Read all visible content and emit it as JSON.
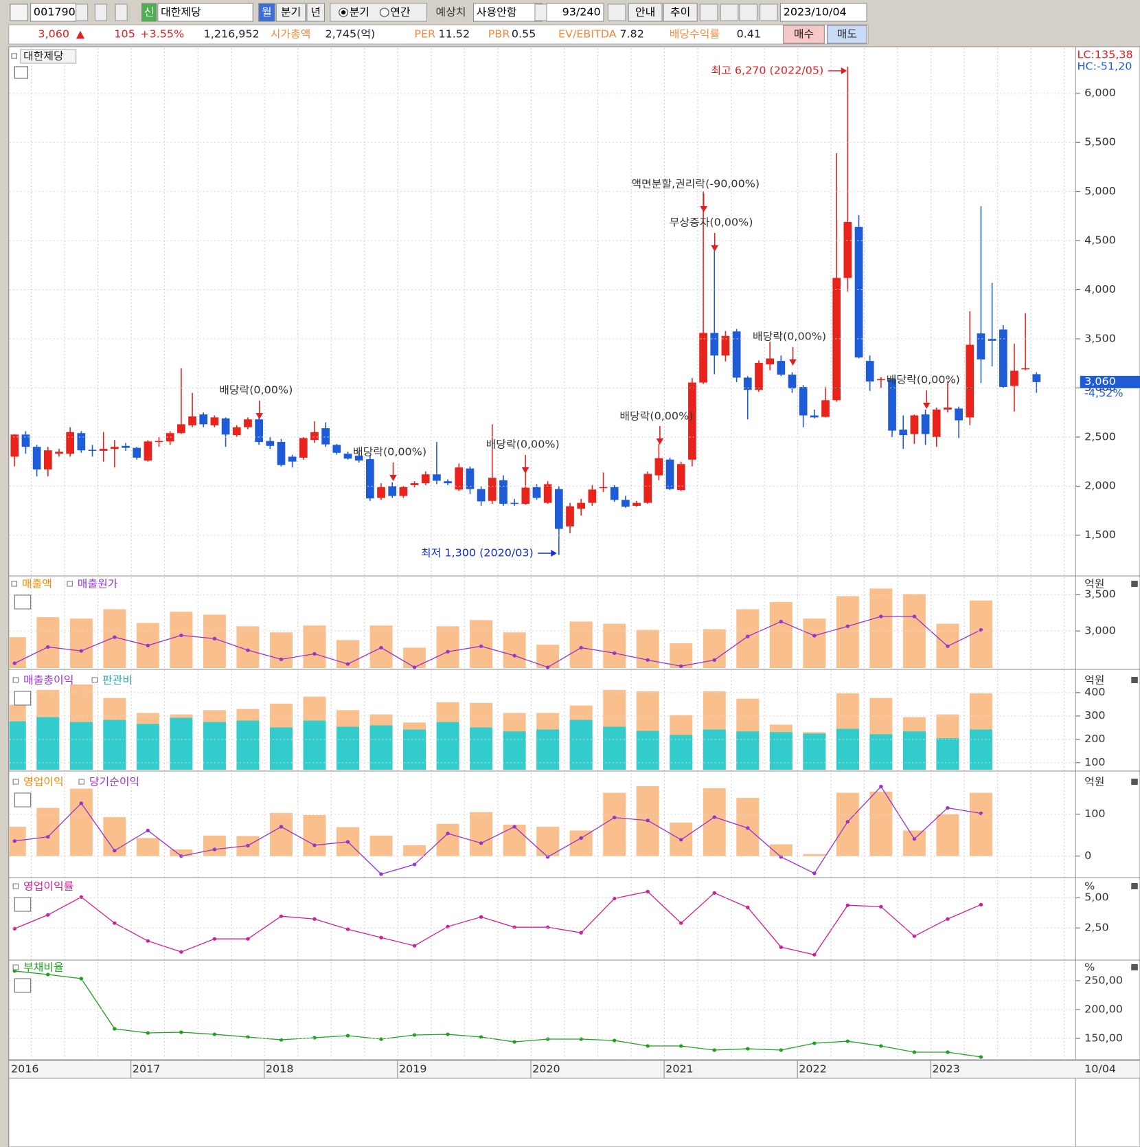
{
  "toolbar": {
    "code": "001790",
    "badge": "신",
    "name": "대한제당",
    "period_month": "월",
    "period_quarter": "분기",
    "period_year": "년",
    "radio_quarter": "분기",
    "radio_annual": "연간",
    "estimate_label": "예상치",
    "estimate_value": "사용안함",
    "count": "93/240",
    "guide": "안내",
    "trend": "추이",
    "date": "2023/10/04"
  },
  "info": {
    "price": "3,060",
    "arrow": "▲",
    "change": "105",
    "change_pct": "+3.55%",
    "volume": "1,216,952",
    "market_cap_label": "시가총액",
    "market_cap": "2,745(억)",
    "per_label": "PER",
    "per": "11.52",
    "pbr_label": "PBR",
    "pbr": "0.55",
    "ev_ebitda_label": "EV/EBITDA",
    "ev_ebitda": "7.82",
    "dividend_yield_label": "배당수익률",
    "dividend_yield": "0.41",
    "buy": "매수",
    "sell": "매도"
  },
  "x_labels": [
    "2016",
    "2017",
    "2018",
    "2019",
    "2020",
    "2021",
    "2022",
    "2023",
    "10/04"
  ],
  "chart_data": [
    {
      "type": "candlestick",
      "title": "대한제당",
      "up_color": "#e8231c",
      "down_color": "#1e5bd6",
      "open": [
        2300,
        2525,
        2400,
        2170,
        2330,
        2330,
        2540,
        2370,
        2360,
        2380,
        2410,
        2390,
        2260,
        2455,
        2455,
        2540,
        2620,
        2730,
        2620,
        2690,
        2520,
        2600,
        2680,
        2460,
        2450,
        2300,
        2290,
        2470,
        2590,
        2420,
        2330,
        2310,
        2275,
        1880,
        2000,
        1900,
        2010,
        2030,
        2120,
        2050,
        1965,
        2180,
        1970,
        1850,
        2060,
        1830,
        1820,
        1990,
        1830,
        1970,
        1590,
        1770,
        1830,
        1980,
        1990,
        1860,
        1800,
        1830,
        2110,
        2270,
        1960,
        2270,
        3055,
        3560,
        3330,
        3575,
        3105,
        2980,
        3240,
        3275,
        3135,
        3010,
        2720,
        2705,
        2875,
        4120,
        4640,
        3275,
        3080,
        3090,
        2575,
        2530,
        2730,
        2500,
        2780,
        2790,
        2700,
        3555,
        3500,
        3595,
        3020,
        3190,
        3140
      ],
      "high": [
        2530,
        2560,
        2420,
        2400,
        2380,
        2600,
        2560,
        2420,
        2550,
        2470,
        2440,
        2400,
        2470,
        2500,
        2560,
        3200,
        2950,
        2750,
        2720,
        2700,
        2620,
        2700,
        2720,
        2500,
        2480,
        2320,
        2500,
        2660,
        2650,
        2430,
        2350,
        2360,
        2310,
        2030,
        2040,
        2000,
        2050,
        2150,
        2450,
        2070,
        2230,
        2200,
        2000,
        2630,
        2110,
        1870,
        2150,
        2020,
        2050,
        2000,
        1830,
        1870,
        2010,
        2140,
        2010,
        1900,
        1850,
        2150,
        2430,
        2290,
        2250,
        3100,
        5000,
        4450,
        3580,
        3600,
        3120,
        3280,
        3470,
        3330,
        3160,
        3030,
        2780,
        3010,
        5390,
        6270,
        4760,
        3330,
        3110,
        3100,
        2720,
        2730,
        2780,
        2800,
        3070,
        2810,
        3780,
        4850,
        4070,
        3640,
        3450,
        3760,
        3160
      ],
      "low": [
        2200,
        2330,
        2100,
        2100,
        2300,
        2300,
        2340,
        2300,
        2250,
        2190,
        2360,
        2270,
        2250,
        2400,
        2420,
        2530,
        2600,
        2600,
        2600,
        2400,
        2500,
        2580,
        2420,
        2380,
        2200,
        2190,
        2270,
        2440,
        2400,
        2320,
        2270,
        2240,
        1850,
        1860,
        1880,
        1880,
        1990,
        2010,
        2020,
        2010,
        1950,
        1920,
        1800,
        1820,
        1800,
        1800,
        1810,
        1860,
        1820,
        1300,
        1520,
        1700,
        1800,
        1940,
        1840,
        1780,
        1790,
        1820,
        2060,
        1960,
        1950,
        2200,
        3040,
        3140,
        3270,
        3060,
        2680,
        2960,
        3180,
        3120,
        2950,
        2600,
        2690,
        2700,
        2860,
        3980,
        3300,
        2970,
        3000,
        2500,
        2380,
        2430,
        2420,
        2400,
        2750,
        2490,
        2620,
        3050,
        3220,
        3000,
        2760,
        3180,
        2950
      ],
      "close": [
        2525,
        2400,
        2170,
        2365,
        2350,
        2550,
        2365,
        2360,
        2380,
        2400,
        2390,
        2290,
        2455,
        2460,
        2540,
        2630,
        2710,
        2630,
        2700,
        2525,
        2600,
        2680,
        2450,
        2410,
        2215,
        2250,
        2490,
        2550,
        2425,
        2340,
        2280,
        2260,
        1875,
        1990,
        1900,
        1990,
        2030,
        2120,
        2055,
        2030,
        2190,
        1970,
        1845,
        2085,
        1820,
        1820,
        1985,
        1880,
        2020,
        1565,
        1795,
        1830,
        1965,
        1990,
        1860,
        1790,
        1830,
        2125,
        2285,
        1970,
        2225,
        3055,
        3560,
        3330,
        3530,
        3105,
        2980,
        3255,
        3300,
        3135,
        2995,
        2720,
        2700,
        2875,
        4120,
        4690,
        3310,
        3065,
        3090,
        2565,
        2520,
        2720,
        2530,
        2780,
        2800,
        2670,
        3440,
        3290,
        3480,
        3010,
        3175,
        3200,
        3060
      ],
      "ylim": [
        1100,
        6460
      ],
      "yticks": [
        {
          "value": 1500,
          "label": "1,500"
        },
        {
          "value": 2000,
          "label": "2,000"
        },
        {
          "value": 2500,
          "label": "2,500"
        },
        {
          "value": 3000,
          "label": "3,000"
        },
        {
          "value": 3500,
          "label": "3,500"
        },
        {
          "value": 4000,
          "label": "4,000"
        },
        {
          "value": 4500,
          "label": "4,500"
        },
        {
          "value": 5000,
          "label": "5,000"
        },
        {
          "value": 5500,
          "label": "5,500"
        },
        {
          "value": 6000,
          "label": "6,000"
        }
      ],
      "lc": "LC:135,38",
      "hc": "HC:-51,20",
      "price_tag": "3,060",
      "change_tag": "-4,52%",
      "annotations": [
        {
          "text": "최고 6,270 (2022/05)"
        },
        {
          "text": "최저 1,300 (2020/03)"
        },
        {
          "text": "액면분할,권리락(-90,00%)"
        },
        {
          "text": "무상증자(0,00%)"
        },
        {
          "text": "배당락(0,00%)"
        },
        {
          "text": "배당락(0,00%)"
        },
        {
          "text": "배당락(0,00%)"
        },
        {
          "text": "배당락(0,00%)"
        },
        {
          "text": "배당락(0,00%)"
        },
        {
          "text": "배당락(0,00%)"
        }
      ]
    },
    {
      "type": "bar",
      "unit": "억원",
      "ylim": [
        2490,
        3740
      ],
      "yticks": [
        {
          "value": 3000,
          "label": "3,000"
        },
        {
          "value": 3500,
          "label": "3,500"
        }
      ],
      "series": [
        {
          "name": "매출액",
          "type": "bar",
          "color": "#f9c08e",
          "label_color": "#f08a00",
          "values": [
            2915,
            3190,
            3170,
            3300,
            3110,
            3265,
            3225,
            3065,
            2980,
            3075,
            2875,
            3075,
            2770,
            3065,
            3150,
            2980,
            2810,
            3130,
            3100,
            3015,
            2830,
            3025,
            3300,
            3400,
            3170,
            3480,
            3585,
            3510,
            3100,
            3420
          ]
        },
        {
          "name": "매출원가",
          "type": "line",
          "color": "#9933cc",
          "label_color": "#9933cc",
          "values": [
            2555,
            2780,
            2725,
            2915,
            2800,
            2940,
            2895,
            2735,
            2610,
            2685,
            2545,
            2770,
            2500,
            2715,
            2790,
            2660,
            2500,
            2770,
            2695,
            2600,
            2515,
            2600,
            2925,
            3130,
            2935,
            3065,
            3200,
            3200,
            2790,
            3015
          ]
        }
      ]
    },
    {
      "type": "bar",
      "unit": "억원",
      "ylim": [
        70,
        482
      ],
      "yticks": [
        100,
        200,
        300,
        400
      ],
      "series": [
        {
          "name": "매출총이익",
          "type": "bar",
          "color": "#f9c08e",
          "label_color": "#9933cc",
          "values": [
            348,
            412,
            435,
            377,
            313,
            307,
            325,
            330,
            353,
            383,
            325,
            307,
            272,
            359,
            356,
            313,
            313,
            345,
            412,
            406,
            304,
            406,
            374,
            263,
            231,
            397,
            377,
            295,
            307,
            397
          ]
        },
        {
          "name": "판관비",
          "type": "bar",
          "color": "#33cccc",
          "label_color": "#22aaaa",
          "values": [
            277,
            295,
            274,
            283,
            266,
            292,
            274,
            280,
            251,
            280,
            254,
            260,
            242,
            274,
            251,
            234,
            242,
            283,
            254,
            236,
            219,
            242,
            234,
            231,
            225,
            245,
            222,
            234,
            205,
            242
          ]
        }
      ]
    },
    {
      "type": "bar",
      "unit": "억원",
      "ylim": [
        -48,
        193
      ],
      "yticks": [
        0,
        100
      ],
      "series": [
        {
          "name": "영업이익",
          "type": "bar",
          "color": "#f9c08e",
          "label_color": "#f08a00",
          "values": [
            70,
            115,
            161,
            93,
            43,
            16,
            49,
            48,
            103,
            98,
            69,
            49,
            26,
            77,
            105,
            75,
            70,
            61,
            151,
            167,
            80,
            162,
            139,
            28,
            5,
            151,
            154,
            61,
            100,
            151
          ]
        },
        {
          "name": "당기순이익",
          "type": "line",
          "color": "#9933cc",
          "label_color": "#9933cc",
          "values": [
            36,
            46,
            126,
            13,
            61,
            0,
            16,
            25,
            70,
            26,
            34,
            -43,
            -20,
            54,
            31,
            70,
            -2,
            43,
            92,
            85,
            39,
            93,
            67,
            -2,
            -41,
            82,
            166,
            41,
            115,
            102
          ]
        }
      ]
    },
    {
      "type": "line",
      "unit": "%",
      "ylim": [
        -0.05,
        6.5
      ],
      "yticks": [
        {
          "value": 2.5,
          "label": "2,50"
        },
        {
          "value": 5,
          "label": "5,00"
        }
      ],
      "series": [
        {
          "name": "영업이익률",
          "type": "line",
          "color": "#cc2299",
          "label_color": "#cc2299",
          "values": [
            2.44,
            3.58,
            5.06,
            2.9,
            1.42,
            0.51,
            1.59,
            1.59,
            3.47,
            3.24,
            2.39,
            1.7,
            1.02,
            2.61,
            3.41,
            2.56,
            2.56,
            2.1,
            4.94,
            5.51,
            2.9,
            5.4,
            4.2,
            0.91,
            0.28,
            4.38,
            4.26,
            1.82,
            3.24,
            4.43
          ]
        }
      ]
    },
    {
      "type": "line",
      "unit": "%",
      "ylim": [
        115.5,
        284.5
      ],
      "yticks": [
        {
          "value": 150,
          "label": "150,00"
        },
        {
          "value": 200,
          "label": "200,00"
        },
        {
          "value": 250,
          "label": "250,00"
        }
      ],
      "series": [
        {
          "name": "부채비율",
          "type": "line",
          "color": "#22a022",
          "label_color": "#22a022",
          "values": [
            266.7,
            260.7,
            253.6,
            166.7,
            159.5,
            160.7,
            157.1,
            152.4,
            147.6,
            151.2,
            154.8,
            148.8,
            156,
            157.1,
            152.4,
            144,
            148.8,
            148.8,
            146.4,
            136.9,
            136.9,
            129.8,
            132.1,
            129.8,
            141.7,
            145.2,
            136.9,
            126.2,
            126.2,
            117.9
          ]
        }
      ]
    }
  ]
}
